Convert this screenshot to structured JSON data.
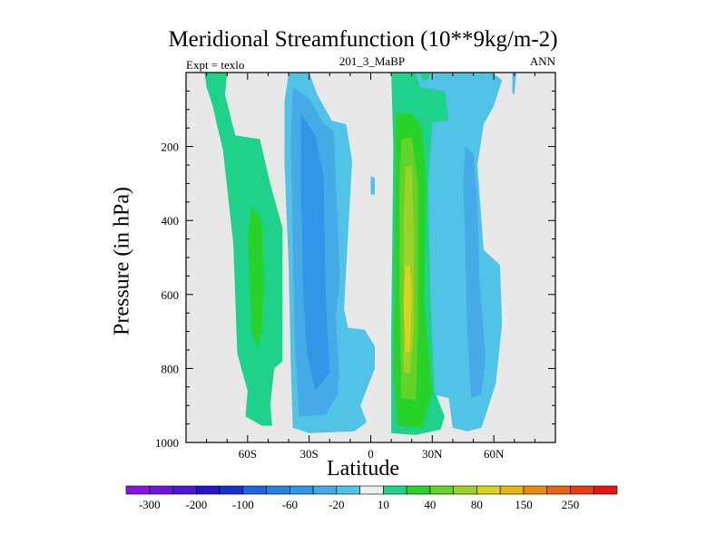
{
  "chart_data": {
    "type": "contour",
    "title": "Meridional Streamfunction (10**9kg/m-2)",
    "left_string": "Expt = texlo",
    "center_string": "201_3_MaBP",
    "right_string": "ANN",
    "xlabel": "Latitude",
    "ylabel": "Pressure (in hPa)",
    "xlim": [
      -90,
      90
    ],
    "ylim": [
      1000,
      0
    ],
    "x_ticks": [
      {
        "value": -60,
        "label": "60S"
      },
      {
        "value": -30,
        "label": "30S"
      },
      {
        "value": 0,
        "label": "0"
      },
      {
        "value": 30,
        "label": "30N"
      },
      {
        "value": 60,
        "label": "60N"
      }
    ],
    "y_ticks": [
      {
        "value": 200,
        "label": "200"
      },
      {
        "value": 400,
        "label": "400"
      },
      {
        "value": 600,
        "label": "600"
      },
      {
        "value": 800,
        "label": "800"
      },
      {
        "value": 1000,
        "label": "1000"
      }
    ],
    "missing_color": "#e8e8e8",
    "colorbar": {
      "colors": [
        "#8a14e6",
        "#6e14dc",
        "#5014d8",
        "#2814cc",
        "#1432d2",
        "#1e64e6",
        "#2882e6",
        "#3296e6",
        "#46aae6",
        "#50c3e6",
        "#eeeeee",
        "#1ed28c",
        "#28d228",
        "#64d228",
        "#9bd228",
        "#dcd21e",
        "#e6b414",
        "#e68c14",
        "#e66414",
        "#e63c14",
        "#e61414"
      ],
      "labels": [
        "-300",
        "-200",
        "-100",
        "-60",
        "-20",
        "10",
        "40",
        "80",
        "150",
        "250"
      ]
    },
    "regions": [
      {
        "name": "sh-green-band",
        "color": "#1ed28c",
        "poly": [
          [
            -81,
            0
          ],
          [
            -70,
            0
          ],
          [
            -71,
            60
          ],
          [
            -66,
            170
          ],
          [
            -54,
            180
          ],
          [
            -49,
            300
          ],
          [
            -43,
            420
          ],
          [
            -43,
            780
          ],
          [
            -47,
            800
          ],
          [
            -49,
            900
          ],
          [
            -48,
            955
          ],
          [
            -53,
            955
          ],
          [
            -61,
            930
          ],
          [
            -60,
            860
          ],
          [
            -65,
            760
          ],
          [
            -67,
            460
          ],
          [
            -72,
            210
          ],
          [
            -75,
            140
          ],
          [
            -77,
            90
          ],
          [
            -80,
            40
          ]
        ]
      },
      {
        "name": "sh-green-core",
        "color": "#28d228",
        "poly": [
          [
            -58,
            360
          ],
          [
            -53,
            400
          ],
          [
            -52,
            560
          ],
          [
            -53,
            700
          ],
          [
            -55,
            750
          ],
          [
            -58,
            700
          ],
          [
            -59,
            560
          ],
          [
            -60,
            440
          ]
        ]
      },
      {
        "name": "sh-outer-blue",
        "color": "#50c3e6",
        "poly": [
          [
            -40,
            0
          ],
          [
            -30,
            0
          ],
          [
            -26,
            60
          ],
          [
            -19,
            130
          ],
          [
            -12,
            140
          ],
          [
            -9,
            240
          ],
          [
            -10,
            330
          ],
          [
            -13,
            640
          ],
          [
            -11,
            690
          ],
          [
            -3,
            695
          ],
          [
            2,
            740
          ],
          [
            2,
            800
          ],
          [
            -5,
            900
          ],
          [
            -2,
            945
          ],
          [
            -8,
            970
          ],
          [
            -30,
            975
          ],
          [
            -38,
            960
          ],
          [
            -39,
            780
          ],
          [
            -40,
            520
          ],
          [
            -42,
            250
          ],
          [
            -42,
            80
          ]
        ]
      },
      {
        "name": "sh-mid-blue",
        "color": "#46aae6",
        "poly": [
          [
            -38,
            40
          ],
          [
            -30,
            70
          ],
          [
            -24,
            130
          ],
          [
            -18,
            160
          ],
          [
            -17,
            300
          ],
          [
            -15,
            560
          ],
          [
            -17,
            660
          ],
          [
            -15,
            860
          ],
          [
            -22,
            925
          ],
          [
            -35,
            930
          ],
          [
            -37,
            720
          ],
          [
            -38,
            440
          ],
          [
            -39,
            200
          ]
        ]
      },
      {
        "name": "sh-inner-blue",
        "color": "#3296e6",
        "poly": [
          [
            -34,
            110
          ],
          [
            -27,
            170
          ],
          [
            -23,
            280
          ],
          [
            -22,
            600
          ],
          [
            -21,
            700
          ],
          [
            -20,
            810
          ],
          [
            -27,
            860
          ],
          [
            -31,
            760
          ],
          [
            -33,
            580
          ],
          [
            -34,
            300
          ]
        ]
      },
      {
        "name": "nh-outer-blue",
        "color": "#50c3e6",
        "poly": [
          [
            20,
            0
          ],
          [
            48,
            0
          ],
          [
            59,
            0
          ],
          [
            64,
            20
          ],
          [
            60,
            90
          ],
          [
            55,
            140
          ],
          [
            52,
            250
          ],
          [
            55,
            480
          ],
          [
            63,
            520
          ],
          [
            64,
            680
          ],
          [
            61,
            840
          ],
          [
            54,
            960
          ],
          [
            47,
            970
          ],
          [
            40,
            960
          ],
          [
            38,
            880
          ],
          [
            30,
            870
          ],
          [
            29,
            780
          ],
          [
            26,
            400
          ],
          [
            22,
            130
          ],
          [
            20,
            60
          ]
        ]
      },
      {
        "name": "nh-mid-blue",
        "color": "#46aae6",
        "poly": [
          [
            46,
            200
          ],
          [
            50,
            220
          ],
          [
            52,
            350
          ],
          [
            53,
            560
          ],
          [
            56,
            770
          ],
          [
            54,
            870
          ],
          [
            49,
            880
          ],
          [
            47,
            700
          ],
          [
            46,
            450
          ],
          [
            45,
            300
          ]
        ]
      },
      {
        "name": "nh-green-band",
        "color": "#1ed28c",
        "poly": [
          [
            10,
            0
          ],
          [
            22,
            0
          ],
          [
            24,
            40
          ],
          [
            36,
            50
          ],
          [
            38,
            130
          ],
          [
            30,
            135
          ],
          [
            28,
            300
          ],
          [
            29,
            600
          ],
          [
            31,
            860
          ],
          [
            36,
            930
          ],
          [
            34,
            965
          ],
          [
            22,
            980
          ],
          [
            10,
            975
          ],
          [
            10,
            700
          ],
          [
            11,
            200
          ]
        ]
      },
      {
        "name": "nh-green-core",
        "color": "#28d228",
        "poly": [
          [
            12,
            110
          ],
          [
            20,
            110
          ],
          [
            25,
            150
          ],
          [
            27,
            300
          ],
          [
            26,
            620
          ],
          [
            30,
            860
          ],
          [
            25,
            960
          ],
          [
            13,
            955
          ],
          [
            11,
            800
          ],
          [
            12,
            300
          ]
        ]
      },
      {
        "name": "nh-lime",
        "color": "#64d228",
        "poly": [
          [
            15,
            180
          ],
          [
            20,
            175
          ],
          [
            23,
            300
          ],
          [
            23,
            700
          ],
          [
            22,
            885
          ],
          [
            15,
            880
          ],
          [
            14,
            600
          ],
          [
            14,
            300
          ]
        ]
      },
      {
        "name": "nh-yellowgreen",
        "color": "#9bd228",
        "poly": [
          [
            17,
            255
          ],
          [
            20,
            250
          ],
          [
            21,
            430
          ],
          [
            21,
            700
          ],
          [
            19,
            815
          ],
          [
            16,
            810
          ],
          [
            16,
            600
          ],
          [
            16,
            400
          ]
        ]
      },
      {
        "name": "nh-yellow",
        "color": "#dcd21e",
        "poly": [
          [
            17,
            525
          ],
          [
            19,
            520
          ],
          [
            20,
            600
          ],
          [
            19,
            755
          ],
          [
            17,
            755
          ],
          [
            16,
            620
          ]
        ]
      },
      {
        "name": "top-green-blob-a",
        "color": "#1ed28c",
        "poly": [
          [
            24,
            0
          ],
          [
            29,
            0
          ],
          [
            28,
            20
          ],
          [
            25,
            20
          ]
        ]
      },
      {
        "name": "top-blue-blob",
        "color": "#50c3e6",
        "poly": [
          [
            69,
            0
          ],
          [
            71,
            0
          ],
          [
            70,
            60
          ],
          [
            69,
            55
          ]
        ]
      },
      {
        "name": "sh-small-blue",
        "color": "#50c3e6",
        "poly": [
          [
            0,
            280
          ],
          [
            2,
            285
          ],
          [
            2,
            330
          ],
          [
            0,
            330
          ]
        ]
      },
      {
        "name": "sh-lower-blue",
        "color": "#50c3e6",
        "poly": [
          [
            -16,
            830
          ],
          [
            -12,
            835
          ],
          [
            -12,
            870
          ],
          [
            -16,
            870
          ]
        ]
      }
    ]
  }
}
